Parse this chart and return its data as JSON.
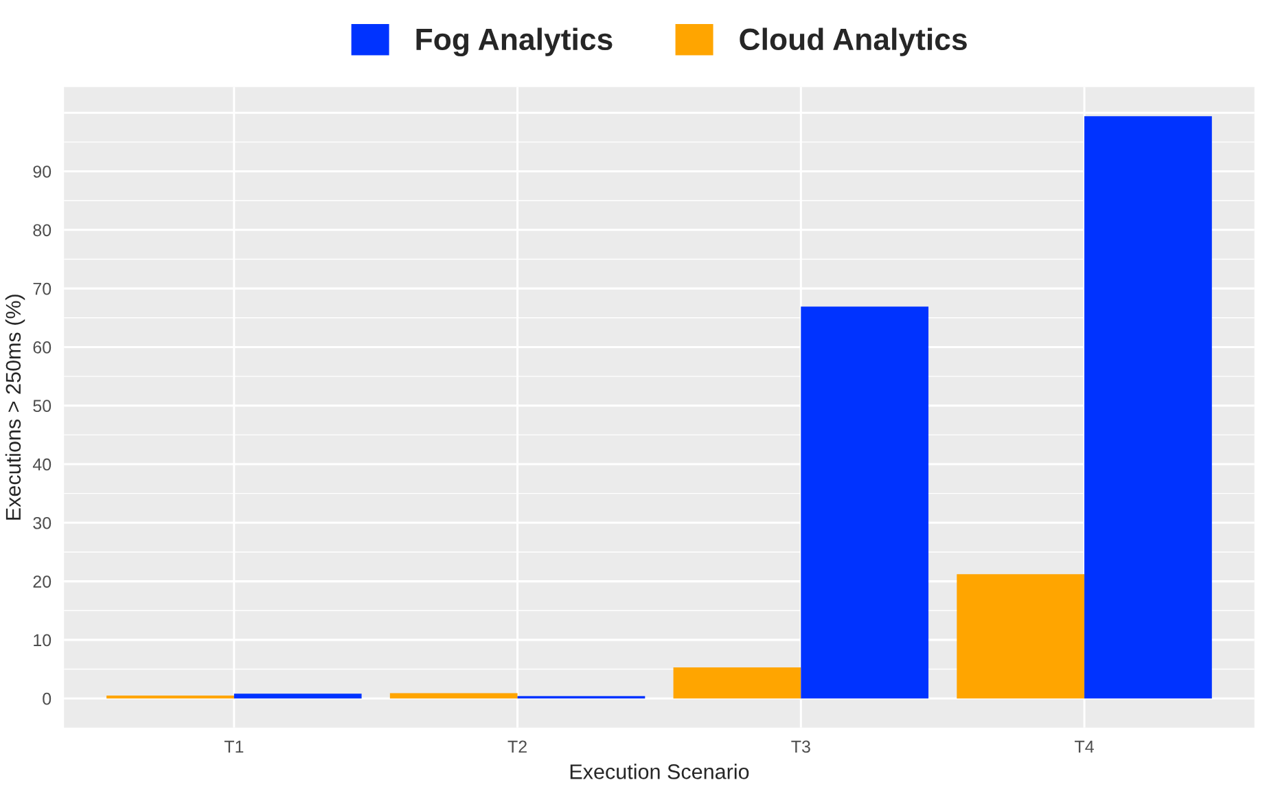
{
  "chart_data": {
    "type": "bar",
    "xlabel": "Execution Scenario",
    "ylabel": "Executions > 250ms (%)",
    "categories": [
      "T1",
      "T2",
      "T3",
      "T4"
    ],
    "series": [
      {
        "name": "Cloud Analytics",
        "color": "#ffa500",
        "values": [
          0.5,
          0.9,
          5.3,
          21.2
        ]
      },
      {
        "name": "Fog Analytics",
        "color": "#0033ff",
        "values": [
          0.8,
          0.4,
          66.9,
          99.4
        ]
      }
    ],
    "ylim": [
      -5,
      104.4
    ],
    "yticks": [
      0,
      10,
      20,
      30,
      40,
      50,
      60,
      70,
      80,
      90,
      {
        "value": 100,
        "label": null
      }
    ],
    "grid": true,
    "legend": "top"
  }
}
